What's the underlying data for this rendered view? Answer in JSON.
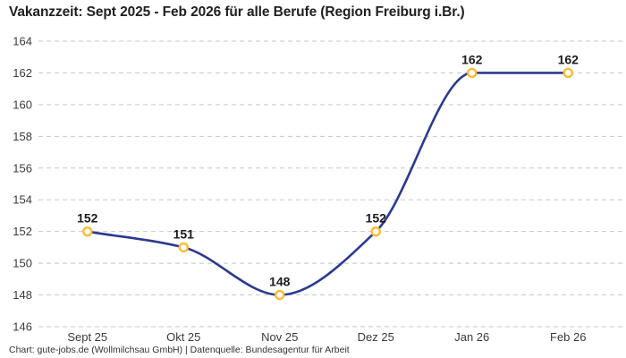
{
  "title": "Vakanzzeit: Sept 2025 - Feb 2026 für alle Berufe (Region Freiburg i.Br.)",
  "footer": "Chart: gute-jobs.de (Wollmilchsau GmbH) | Datenquelle: Bundesagentur für Arbeit",
  "chart_data": {
    "type": "line",
    "title": "Vakanzzeit: Sept 2025 - Feb 2026 für alle Berufe (Region Freiburg i.Br.)",
    "categories": [
      "Sept 25",
      "Okt 25",
      "Nov 25",
      "Dez 25",
      "Jan 26",
      "Feb 26"
    ],
    "values": [
      152,
      151,
      148,
      152,
      162,
      162
    ],
    "xlabel": "",
    "ylabel": "",
    "ylim": [
      146,
      164
    ],
    "ytick_step": 2,
    "grid": "horizontal-dashed",
    "legend": "none",
    "curve": "monotone-smooth",
    "show_point_labels": true,
    "colors": {
      "line": "#2b3a90",
      "marker_stroke": "#f8bc33",
      "marker_fill": "#ffffff",
      "grid": "#c8c8c8",
      "tick_text": "#3b3b3b",
      "point_label_text": "#1b1b1b",
      "background": "#ffffff"
    }
  }
}
